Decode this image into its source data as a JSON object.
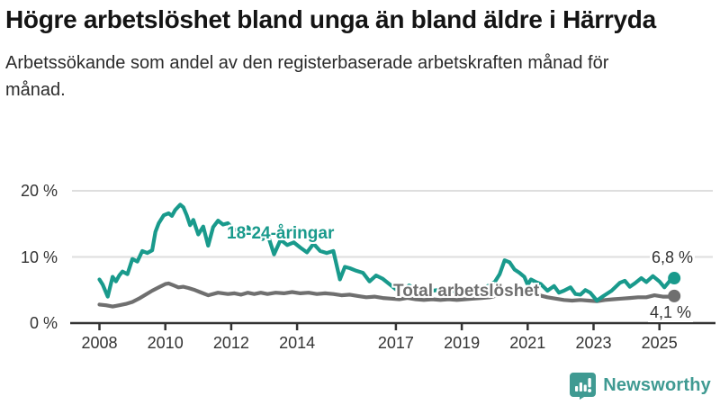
{
  "page": {
    "title": "Högre arbetslöshet bland unga än bland äldre i Härryda",
    "subtitle": "Arbetssökande som andel av den registerbaserade arbetskraften månad för månad."
  },
  "footer": {
    "brand": "Newsworthy"
  },
  "colors": {
    "youth_line": "#199a8c",
    "total_line": "#6f6f6f",
    "grid": "#dedede",
    "axis": "#333333",
    "text": "#333333",
    "brand": "#3f9a92"
  },
  "chart_data": {
    "type": "line",
    "unit": "%",
    "grid": "horizontal",
    "legend_position": "inline-labels",
    "x_axis": {
      "ticks": [
        2008,
        2010,
        2012,
        2014,
        2017,
        2019,
        2021,
        2023,
        2025
      ],
      "tick_labels": [
        "2008",
        "2010",
        "2012",
        "2014",
        "2017",
        "2019",
        "2021",
        "2023",
        "2025"
      ],
      "range": [
        2007.2,
        2026.2
      ]
    },
    "y_axis": {
      "ticks": [
        0,
        10,
        20
      ],
      "tick_labels": [
        "0 %",
        "10 %",
        "20 %"
      ],
      "range": [
        0,
        21
      ]
    },
    "series": [
      {
        "name": "18-24-åringar",
        "color": "#199a8c",
        "end_label": "6,8 %",
        "end_value": 6.8,
        "points": [
          [
            2008.0,
            6.6
          ],
          [
            2008.1,
            5.8
          ],
          [
            2008.25,
            4.0
          ],
          [
            2008.4,
            7.0
          ],
          [
            2008.5,
            6.3
          ],
          [
            2008.6,
            7.2
          ],
          [
            2008.7,
            7.8
          ],
          [
            2008.85,
            7.4
          ],
          [
            2009.0,
            9.7
          ],
          [
            2009.15,
            9.3
          ],
          [
            2009.3,
            10.9
          ],
          [
            2009.45,
            10.6
          ],
          [
            2009.6,
            11.0
          ],
          [
            2009.7,
            13.8
          ],
          [
            2009.8,
            15.1
          ],
          [
            2009.95,
            16.3
          ],
          [
            2010.1,
            16.6
          ],
          [
            2010.2,
            16.2
          ],
          [
            2010.3,
            17.1
          ],
          [
            2010.45,
            17.9
          ],
          [
            2010.55,
            17.5
          ],
          [
            2010.65,
            16.3
          ],
          [
            2010.75,
            14.8
          ],
          [
            2010.85,
            15.6
          ],
          [
            2011.0,
            13.4
          ],
          [
            2011.15,
            14.6
          ],
          [
            2011.3,
            11.7
          ],
          [
            2011.45,
            14.5
          ],
          [
            2011.6,
            15.5
          ],
          [
            2011.75,
            14.9
          ],
          [
            2011.9,
            15.1
          ],
          [
            2012.05,
            14.2
          ],
          [
            2012.2,
            14.0
          ],
          [
            2012.35,
            13.6
          ],
          [
            2012.5,
            14.5
          ],
          [
            2012.65,
            13.8
          ],
          [
            2012.8,
            14.4
          ],
          [
            2012.95,
            12.7
          ],
          [
            2013.1,
            13.5
          ],
          [
            2013.3,
            10.4
          ],
          [
            2013.5,
            12.6
          ],
          [
            2013.7,
            11.8
          ],
          [
            2013.9,
            12.2
          ],
          [
            2014.1,
            11.4
          ],
          [
            2014.3,
            10.7
          ],
          [
            2014.5,
            12.0
          ],
          [
            2014.7,
            10.9
          ],
          [
            2014.9,
            10.6
          ],
          [
            2015.1,
            10.9
          ],
          [
            2015.3,
            6.6
          ],
          [
            2015.45,
            8.5
          ],
          [
            2015.6,
            8.3
          ],
          [
            2015.8,
            7.9
          ],
          [
            2016.0,
            7.6
          ],
          [
            2016.2,
            6.3
          ],
          [
            2016.4,
            7.2
          ],
          [
            2016.6,
            6.7
          ],
          [
            2016.8,
            5.9
          ],
          [
            2017.0,
            5.1
          ],
          [
            2017.2,
            4.9
          ],
          [
            2017.4,
            5.7
          ],
          [
            2017.6,
            5.2
          ],
          [
            2017.8,
            4.7
          ],
          [
            2018.0,
            4.8
          ],
          [
            2018.25,
            5.0
          ],
          [
            2018.5,
            4.7
          ],
          [
            2018.75,
            4.9
          ],
          [
            2019.0,
            5.0
          ],
          [
            2019.25,
            4.9
          ],
          [
            2019.5,
            5.1
          ],
          [
            2019.75,
            5.5
          ],
          [
            2020.0,
            6.2
          ],
          [
            2020.15,
            7.4
          ],
          [
            2020.3,
            9.5
          ],
          [
            2020.45,
            9.2
          ],
          [
            2020.6,
            8.1
          ],
          [
            2020.75,
            7.6
          ],
          [
            2020.9,
            7.0
          ],
          [
            2021.0,
            5.8
          ],
          [
            2021.1,
            6.6
          ],
          [
            2021.25,
            6.2
          ],
          [
            2021.4,
            5.9
          ],
          [
            2021.6,
            4.9
          ],
          [
            2021.8,
            5.6
          ],
          [
            2021.95,
            4.6
          ],
          [
            2022.1,
            4.9
          ],
          [
            2022.3,
            5.4
          ],
          [
            2022.45,
            4.4
          ],
          [
            2022.6,
            4.3
          ],
          [
            2022.75,
            5.0
          ],
          [
            2022.9,
            4.6
          ],
          [
            2023.1,
            3.4
          ],
          [
            2023.3,
            4.1
          ],
          [
            2023.55,
            4.9
          ],
          [
            2023.8,
            6.1
          ],
          [
            2023.95,
            6.4
          ],
          [
            2024.1,
            5.5
          ],
          [
            2024.25,
            6.0
          ],
          [
            2024.45,
            6.8
          ],
          [
            2024.6,
            6.2
          ],
          [
            2024.8,
            7.1
          ],
          [
            2025.0,
            6.3
          ],
          [
            2025.15,
            5.4
          ],
          [
            2025.3,
            6.3
          ],
          [
            2025.38,
            7.0
          ],
          [
            2025.45,
            6.8
          ]
        ]
      },
      {
        "name": "Total arbetslöshet",
        "color": "#6f6f6f",
        "end_label": "4,1 %",
        "end_value": 4.1,
        "points": [
          [
            2008.0,
            2.8
          ],
          [
            2008.2,
            2.7
          ],
          [
            2008.4,
            2.5
          ],
          [
            2008.6,
            2.7
          ],
          [
            2008.8,
            2.9
          ],
          [
            2009.0,
            3.2
          ],
          [
            2009.2,
            3.7
          ],
          [
            2009.4,
            4.3
          ],
          [
            2009.6,
            4.9
          ],
          [
            2009.8,
            5.4
          ],
          [
            2010.0,
            5.9
          ],
          [
            2010.1,
            6.0
          ],
          [
            2010.25,
            5.7
          ],
          [
            2010.4,
            5.4
          ],
          [
            2010.55,
            5.5
          ],
          [
            2010.7,
            5.3
          ],
          [
            2010.9,
            5.0
          ],
          [
            2011.05,
            4.7
          ],
          [
            2011.3,
            4.2
          ],
          [
            2011.6,
            4.6
          ],
          [
            2011.9,
            4.4
          ],
          [
            2012.1,
            4.5
          ],
          [
            2012.3,
            4.3
          ],
          [
            2012.5,
            4.6
          ],
          [
            2012.7,
            4.4
          ],
          [
            2012.9,
            4.6
          ],
          [
            2013.1,
            4.4
          ],
          [
            2013.35,
            4.6
          ],
          [
            2013.6,
            4.5
          ],
          [
            2013.85,
            4.7
          ],
          [
            2014.1,
            4.5
          ],
          [
            2014.35,
            4.6
          ],
          [
            2014.6,
            4.4
          ],
          [
            2014.85,
            4.5
          ],
          [
            2015.1,
            4.4
          ],
          [
            2015.35,
            4.2
          ],
          [
            2015.6,
            4.3
          ],
          [
            2015.85,
            4.1
          ],
          [
            2016.1,
            3.9
          ],
          [
            2016.35,
            4.0
          ],
          [
            2016.6,
            3.8
          ],
          [
            2016.85,
            3.7
          ],
          [
            2017.1,
            3.6
          ],
          [
            2017.35,
            3.8
          ],
          [
            2017.6,
            3.6
          ],
          [
            2017.85,
            3.5
          ],
          [
            2018.1,
            3.6
          ],
          [
            2018.35,
            3.5
          ],
          [
            2018.6,
            3.6
          ],
          [
            2018.85,
            3.5
          ],
          [
            2019.1,
            3.6
          ],
          [
            2019.35,
            3.7
          ],
          [
            2019.6,
            3.8
          ],
          [
            2019.85,
            3.9
          ],
          [
            2020.1,
            4.2
          ],
          [
            2020.3,
            4.8
          ],
          [
            2020.5,
            5.0
          ],
          [
            2020.7,
            4.9
          ],
          [
            2020.9,
            4.7
          ],
          [
            2021.1,
            4.5
          ],
          [
            2021.35,
            4.2
          ],
          [
            2021.6,
            3.9
          ],
          [
            2021.85,
            3.7
          ],
          [
            2022.1,
            3.5
          ],
          [
            2022.35,
            3.4
          ],
          [
            2022.6,
            3.5
          ],
          [
            2022.85,
            3.4
          ],
          [
            2023.1,
            3.3
          ],
          [
            2023.35,
            3.5
          ],
          [
            2023.6,
            3.6
          ],
          [
            2023.85,
            3.7
          ],
          [
            2024.1,
            3.8
          ],
          [
            2024.35,
            3.9
          ],
          [
            2024.6,
            3.9
          ],
          [
            2024.85,
            4.2
          ],
          [
            2025.1,
            4.0
          ],
          [
            2025.3,
            4.0
          ],
          [
            2025.45,
            4.1
          ]
        ]
      }
    ]
  }
}
